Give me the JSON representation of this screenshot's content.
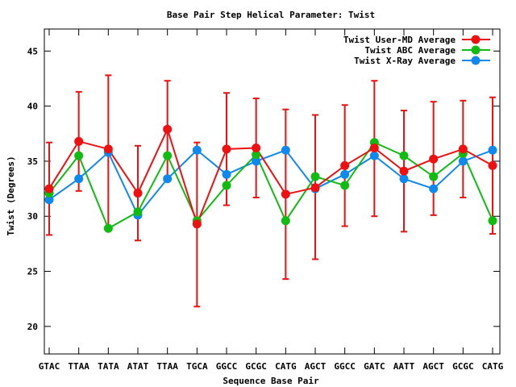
{
  "chart_data": {
    "type": "line",
    "title": "Base Pair Step Helical Parameter: Twist",
    "xlabel": "Sequence Base Pair",
    "ylabel": "Twist (Degrees)",
    "ylim": [
      17.5,
      47
    ],
    "yticks": [
      20,
      25,
      30,
      35,
      40,
      45
    ],
    "grid": false,
    "legend": "top-right",
    "categories": [
      "GTAC",
      "TTAA",
      "TATA",
      "ATAT",
      "TTAA",
      "TGCA",
      "GGCC",
      "GCGC",
      "CATG",
      "AGCT",
      "GGCC",
      "GATC",
      "AATT",
      "AGCT",
      "GCGC",
      "CATG"
    ],
    "series": [
      {
        "name": "Twist User-MD Average",
        "color": "#ee1111",
        "values": [
          32.5,
          36.8,
          36.1,
          32.1,
          37.9,
          29.3,
          36.1,
          36.2,
          32.0,
          32.6,
          34.6,
          36.2,
          34.1,
          35.2,
          36.1,
          34.6
        ],
        "error_low": [
          28.3,
          32.3,
          29.0,
          27.8,
          33.5,
          21.8,
          31.0,
          31.7,
          24.3,
          26.1,
          29.1,
          30.0,
          28.6,
          30.1,
          31.7,
          28.4
        ],
        "error_high": [
          36.7,
          41.3,
          42.8,
          36.4,
          42.3,
          36.7,
          41.2,
          40.7,
          39.7,
          39.2,
          40.1,
          42.3,
          39.6,
          40.4,
          40.5,
          40.8
        ]
      },
      {
        "name": "Twist ABC Average",
        "color": "#11bb11",
        "values": [
          32.1,
          35.5,
          28.9,
          30.4,
          35.5,
          29.6,
          32.8,
          35.6,
          29.6,
          33.6,
          32.8,
          36.7,
          35.5,
          33.6,
          35.7,
          29.6
        ]
      },
      {
        "name": "Twist X-Ray Average",
        "color": "#1188ee",
        "values": [
          31.5,
          33.4,
          35.8,
          30.1,
          33.4,
          36.0,
          33.8,
          35.0,
          36.0,
          32.5,
          33.8,
          35.5,
          33.4,
          32.5,
          35.0,
          36.0
        ]
      }
    ]
  }
}
